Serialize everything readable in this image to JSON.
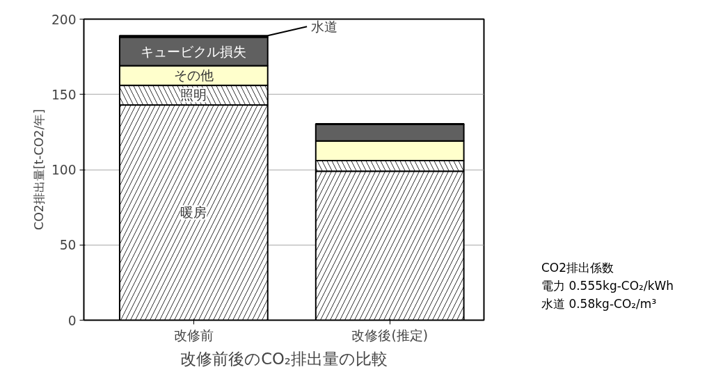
{
  "chart_data": {
    "type": "bar",
    "stacked": true,
    "title": "改修前後のCO₂排出量の比較",
    "ylabel": "CO2排出量[t-CO2/年]",
    "categories": [
      "改修前",
      "改修後(推定)"
    ],
    "series": [
      {
        "name": "暖房",
        "color": "#ffffff",
        "values": [
          143,
          99
        ]
      },
      {
        "name": "照明",
        "color": "#ffffff",
        "values": [
          13,
          7
        ]
      },
      {
        "name": "その他",
        "color": "#ffffcc",
        "values": [
          13,
          13
        ]
      },
      {
        "name": "キュービクル損失",
        "color": "#606060",
        "values": [
          19,
          11
        ]
      },
      {
        "name": "水道",
        "color": "#202020",
        "values": [
          1,
          0.5
        ]
      }
    ],
    "ylim": [
      0,
      200
    ],
    "yticks": [
      0,
      50,
      100,
      150,
      200
    ],
    "grid": "y",
    "annotations": [
      "CO2排出係数",
      "電力  0.555kg-CO₂/kWh",
      "水道  0.58kg-CO₂/m³"
    ]
  }
}
